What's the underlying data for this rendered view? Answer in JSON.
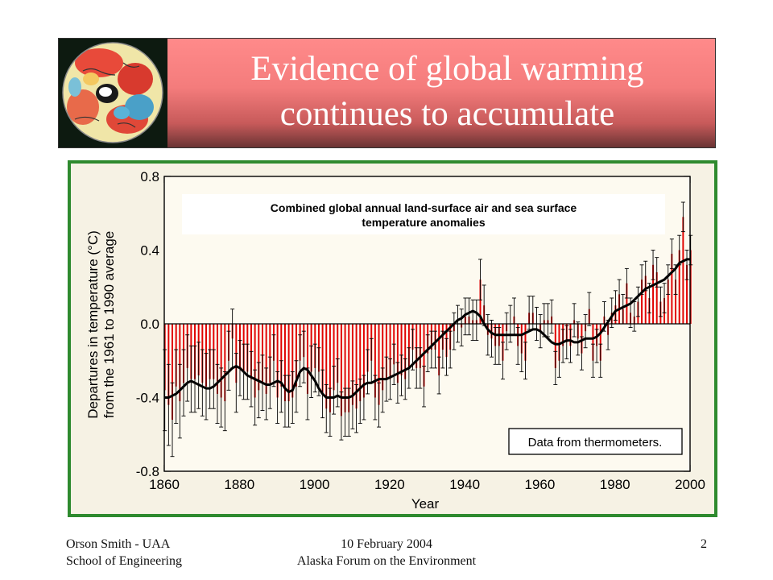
{
  "slide": {
    "title_line1": "Evidence of global warming",
    "title_line2": "continues to accumulate",
    "footer_left_line1": "Orson Smith - UAA",
    "footer_left_line2": "School of Engineering",
    "footer_center_line1": "10 February 2004",
    "footer_center_line2": "Alaska Forum on the Environment",
    "page_number": "2"
  },
  "colors": {
    "banner_gradient": [
      "#ff8a8a",
      "#6a3434"
    ],
    "frame_border": "#2e8a2e",
    "bar_color": "#e00000",
    "smooth_line": "#000000",
    "error_bar": "#000000"
  },
  "icons": {
    "banner_image": "northern-hemisphere-temperature-globe"
  },
  "chart_data": {
    "type": "bar",
    "title_line1": "Combined global annual land-surface air and sea surface",
    "title_line2": "temperature anomalies",
    "xlabel": "Year",
    "ylabel_line1": "Departures in temperature (°C)",
    "ylabel_line2": "from the 1961 to 1990 average",
    "note": "Data from thermometers.",
    "xlim": [
      1860,
      2000
    ],
    "ylim": [
      -0.8,
      0.8
    ],
    "x_ticks": [
      "1860",
      "1880",
      "1900",
      "1920",
      "1940",
      "1960",
      "1980",
      "2000"
    ],
    "y_ticks": [
      "-0.8",
      "-0.4",
      "0.0",
      "0.4",
      "0.8"
    ],
    "grid": false,
    "years": [
      1860,
      1861,
      1862,
      1863,
      1864,
      1865,
      1866,
      1867,
      1868,
      1869,
      1870,
      1871,
      1872,
      1873,
      1874,
      1875,
      1876,
      1877,
      1878,
      1879,
      1880,
      1881,
      1882,
      1883,
      1884,
      1885,
      1886,
      1887,
      1888,
      1889,
      1890,
      1891,
      1892,
      1893,
      1894,
      1895,
      1896,
      1897,
      1898,
      1899,
      1900,
      1901,
      1902,
      1903,
      1904,
      1905,
      1906,
      1907,
      1908,
      1909,
      1910,
      1911,
      1912,
      1913,
      1914,
      1915,
      1916,
      1917,
      1918,
      1919,
      1920,
      1921,
      1922,
      1923,
      1924,
      1925,
      1926,
      1927,
      1928,
      1929,
      1930,
      1931,
      1932,
      1933,
      1934,
      1935,
      1936,
      1937,
      1938,
      1939,
      1940,
      1941,
      1942,
      1943,
      1944,
      1945,
      1946,
      1947,
      1948,
      1949,
      1950,
      1951,
      1952,
      1953,
      1954,
      1955,
      1956,
      1957,
      1958,
      1959,
      1960,
      1961,
      1962,
      1963,
      1964,
      1965,
      1966,
      1967,
      1968,
      1969,
      1970,
      1971,
      1972,
      1973,
      1974,
      1975,
      1976,
      1977,
      1978,
      1979,
      1980,
      1981,
      1982,
      1983,
      1984,
      1985,
      1986,
      1987,
      1988,
      1989,
      1990,
      1991,
      1992,
      1993,
      1994,
      1995,
      1996,
      1997,
      1998,
      1999,
      2000
    ],
    "anomalies": [
      -0.36,
      -0.44,
      -0.52,
      -0.34,
      -0.42,
      -0.32,
      -0.24,
      -0.3,
      -0.3,
      -0.28,
      -0.32,
      -0.34,
      -0.3,
      -0.3,
      -0.38,
      -0.4,
      -0.42,
      -0.2,
      -0.08,
      -0.32,
      -0.24,
      -0.26,
      -0.26,
      -0.3,
      -0.4,
      -0.36,
      -0.32,
      -0.38,
      -0.32,
      -0.2,
      -0.4,
      -0.34,
      -0.42,
      -0.42,
      -0.4,
      -0.34,
      -0.2,
      -0.18,
      -0.38,
      -0.26,
      -0.24,
      -0.26,
      -0.38,
      -0.46,
      -0.48,
      -0.36,
      -0.32,
      -0.5,
      -0.48,
      -0.48,
      -0.44,
      -0.46,
      -0.42,
      -0.4,
      -0.26,
      -0.2,
      -0.4,
      -0.44,
      -0.36,
      -0.3,
      -0.3,
      -0.22,
      -0.32,
      -0.28,
      -0.3,
      -0.24,
      -0.14,
      -0.24,
      -0.24,
      -0.34,
      -0.16,
      -0.14,
      -0.14,
      -0.28,
      -0.14,
      -0.18,
      -0.14,
      -0.04,
      0.0,
      -0.02,
      0.04,
      0.04,
      0.02,
      0.02,
      0.24,
      0.1,
      -0.06,
      -0.08,
      -0.12,
      -0.12,
      -0.2,
      -0.04,
      0.0,
      0.04,
      -0.12,
      -0.16,
      -0.2,
      0.06,
      0.06,
      0.0,
      -0.04,
      0.02,
      0.02,
      0.04,
      -0.24,
      -0.2,
      -0.12,
      -0.1,
      -0.12,
      0.02,
      -0.08,
      -0.16,
      -0.04,
      0.08,
      -0.2,
      -0.12,
      -0.2,
      0.04,
      -0.06,
      0.06,
      0.1,
      0.16,
      0.08,
      0.22,
      0.06,
      0.04,
      0.12,
      0.24,
      0.26,
      0.14,
      0.32,
      0.28,
      0.12,
      0.14,
      0.24,
      0.38,
      0.24,
      0.4,
      0.58,
      0.32,
      0.4
    ],
    "smoothed": [
      -0.4,
      -0.4,
      -0.39,
      -0.38,
      -0.36,
      -0.34,
      -0.32,
      -0.31,
      -0.32,
      -0.33,
      -0.34,
      -0.35,
      -0.35,
      -0.34,
      -0.32,
      -0.3,
      -0.28,
      -0.26,
      -0.24,
      -0.23,
      -0.24,
      -0.26,
      -0.28,
      -0.29,
      -0.3,
      -0.31,
      -0.32,
      -0.33,
      -0.33,
      -0.32,
      -0.31,
      -0.32,
      -0.35,
      -0.37,
      -0.36,
      -0.31,
      -0.26,
      -0.24,
      -0.25,
      -0.28,
      -0.31,
      -0.35,
      -0.38,
      -0.4,
      -0.4,
      -0.4,
      -0.39,
      -0.4,
      -0.4,
      -0.4,
      -0.39,
      -0.37,
      -0.35,
      -0.33,
      -0.32,
      -0.32,
      -0.31,
      -0.3,
      -0.3,
      -0.3,
      -0.29,
      -0.28,
      -0.27,
      -0.26,
      -0.25,
      -0.24,
      -0.22,
      -0.2,
      -0.18,
      -0.16,
      -0.14,
      -0.12,
      -0.1,
      -0.08,
      -0.06,
      -0.04,
      -0.02,
      0.0,
      0.02,
      0.03,
      0.05,
      0.06,
      0.07,
      0.06,
      0.04,
      0.0,
      -0.03,
      -0.05,
      -0.06,
      -0.06,
      -0.06,
      -0.06,
      -0.06,
      -0.06,
      -0.06,
      -0.06,
      -0.05,
      -0.04,
      -0.03,
      -0.03,
      -0.04,
      -0.06,
      -0.08,
      -0.1,
      -0.11,
      -0.11,
      -0.1,
      -0.09,
      -0.09,
      -0.1,
      -0.1,
      -0.09,
      -0.08,
      -0.08,
      -0.08,
      -0.07,
      -0.05,
      -0.02,
      0.01,
      0.04,
      0.07,
      0.08,
      0.09,
      0.1,
      0.11,
      0.13,
      0.15,
      0.17,
      0.19,
      0.2,
      0.21,
      0.22,
      0.23,
      0.24,
      0.26,
      0.28,
      0.3,
      0.33,
      0.34,
      0.35,
      0.35
    ],
    "error_margin": [
      0.22,
      0.22,
      0.2,
      0.2,
      0.2,
      0.18,
      0.18,
      0.18,
      0.18,
      0.18,
      0.18,
      0.18,
      0.16,
      0.16,
      0.16,
      0.16,
      0.16,
      0.16,
      0.16,
      0.16,
      0.15,
      0.15,
      0.15,
      0.15,
      0.15,
      0.15,
      0.15,
      0.14,
      0.14,
      0.14,
      0.14,
      0.14,
      0.14,
      0.14,
      0.14,
      0.14,
      0.14,
      0.14,
      0.14,
      0.14,
      0.13,
      0.13,
      0.13,
      0.13,
      0.13,
      0.13,
      0.13,
      0.13,
      0.13,
      0.13,
      0.13,
      0.13,
      0.12,
      0.12,
      0.12,
      0.12,
      0.12,
      0.12,
      0.12,
      0.12,
      0.11,
      0.11,
      0.11,
      0.11,
      0.11,
      0.11,
      0.11,
      0.11,
      0.11,
      0.11,
      0.1,
      0.1,
      0.1,
      0.1,
      0.1,
      0.1,
      0.1,
      0.1,
      0.1,
      0.1,
      0.1,
      0.1,
      0.11,
      0.11,
      0.11,
      0.11,
      0.11,
      0.1,
      0.1,
      0.1,
      0.1,
      0.1,
      0.1,
      0.1,
      0.1,
      0.1,
      0.1,
      0.09,
      0.09,
      0.09,
      0.09,
      0.09,
      0.09,
      0.09,
      0.09,
      0.09,
      0.09,
      0.09,
      0.09,
      0.09,
      0.09,
      0.09,
      0.09,
      0.09,
      0.09,
      0.09,
      0.09,
      0.08,
      0.08,
      0.08,
      0.08,
      0.08,
      0.08,
      0.08,
      0.08,
      0.08,
      0.08,
      0.08,
      0.08,
      0.08,
      0.08,
      0.08,
      0.08,
      0.08,
      0.08,
      0.08,
      0.08,
      0.08,
      0.08,
      0.08,
      0.08
    ]
  }
}
